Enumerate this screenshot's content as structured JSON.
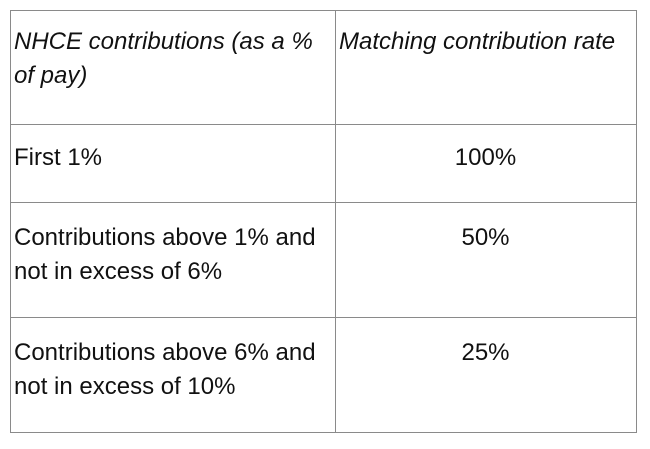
{
  "table": {
    "headers": {
      "col1": "NHCE contributions (as a % of pay)",
      "col2": "Matching contribution rate"
    },
    "rows": [
      {
        "contribution": "First 1%",
        "rate": "100%"
      },
      {
        "contribution": "Contributions above 1% and not in excess of 6%",
        "rate": "50%"
      },
      {
        "contribution": "Contributions above 6% and not in excess of 10%",
        "rate": "25%"
      }
    ]
  }
}
